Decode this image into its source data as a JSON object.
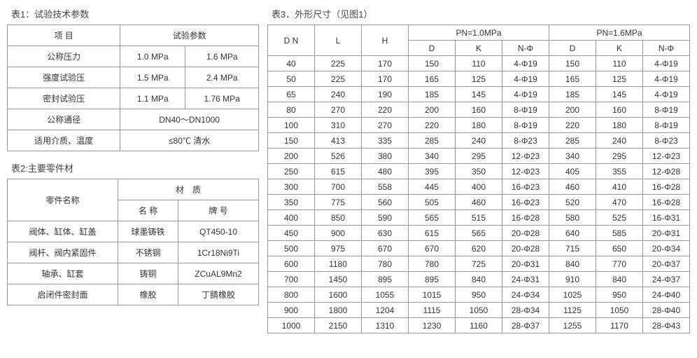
{
  "t1": {
    "title": "表1：试验技术参数",
    "colHeader": "项 目",
    "paramHeader": "试验参数",
    "rows": [
      {
        "label": "公称压力",
        "v1": "1.0 MPa",
        "v2": "1.6 MPa",
        "span": false
      },
      {
        "label": "强度试验压",
        "v1": "1.5 MPa",
        "v2": "2.4 MPa",
        "span": false
      },
      {
        "label": "密封试验压",
        "v1": "1.1 MPa",
        "v2": "1.76 MPa",
        "span": false
      },
      {
        "label": "公称通径",
        "v1": "DN40～DN1000",
        "span": true
      },
      {
        "label": "适用介质、温度",
        "v1": "≤80℃ 清水",
        "span": true
      }
    ]
  },
  "t2": {
    "title": "表2:主要零件材",
    "nameHeader": "零件名称",
    "matHeader": "材　质",
    "nameCol": "名 称",
    "gradeCol": "牌 号",
    "rows": [
      {
        "part": "阀体、缸体、缸盖",
        "mat": "球墨铸铁",
        "grade": "QT450-10"
      },
      {
        "part": "阀杆、阀内紧固件",
        "mat": "不锈钢",
        "grade": "1Cr18Ni9Ti"
      },
      {
        "part": "轴承、缸套",
        "mat": "铸铜",
        "grade": "ZCuAL9Mn2"
      },
      {
        "part": "启闭件密封面",
        "mat": "橡胶",
        "grade": "丁腈橡胶"
      }
    ]
  },
  "t3": {
    "title": "表3．外形尺寸（见图1）",
    "headers": {
      "dn": "D N",
      "l": "L",
      "h": "H",
      "pn10": "PN=1.0MPa",
      "pn16": "PN=1.6MPa",
      "d": "D",
      "k": "K",
      "nphi": "N-Φ"
    },
    "rows": [
      [
        "40",
        "225",
        "170",
        "150",
        "110",
        "4-Φ19",
        "150",
        "110",
        "4-Φ19"
      ],
      [
        "50",
        "225",
        "170",
        "165",
        "125",
        "4-Φ19",
        "165",
        "125",
        "4-Φ19"
      ],
      [
        "65",
        "240",
        "190",
        "185",
        "145",
        "4-Φ19",
        "185",
        "145",
        "4-Φ19"
      ],
      [
        "80",
        "270",
        "220",
        "200",
        "160",
        "8-Φ19",
        "200",
        "160",
        "8-Φ19"
      ],
      [
        "100",
        "310",
        "270",
        "220",
        "180",
        "8-Φ19",
        "220",
        "180",
        "8-Φ19"
      ],
      [
        "150",
        "413",
        "335",
        "285",
        "240",
        "8-Φ23",
        "285",
        "240",
        "8-Φ23"
      ],
      [
        "200",
        "526",
        "380",
        "340",
        "295",
        "12-Φ23",
        "340",
        "295",
        "12-Φ23"
      ],
      [
        "250",
        "615",
        "480",
        "395",
        "350",
        "12-Φ23",
        "405",
        "355",
        "12-Φ28"
      ],
      [
        "300",
        "700",
        "558",
        "445",
        "400",
        "16-Φ23",
        "460",
        "410",
        "16-Φ28"
      ],
      [
        "350",
        "775",
        "560",
        "505",
        "460",
        "16-Φ23",
        "520",
        "470",
        "16-Φ28"
      ],
      [
        "400",
        "850",
        "590",
        "565",
        "515",
        "16-Φ28",
        "580",
        "525",
        "16-Φ31"
      ],
      [
        "450",
        "900",
        "630",
        "615",
        "565",
        "20-Φ28",
        "640",
        "585",
        "20-Φ31"
      ],
      [
        "500",
        "975",
        "670",
        "670",
        "620",
        "20-Φ28",
        "715",
        "650",
        "20-Φ34"
      ],
      [
        "600",
        "1180",
        "780",
        "780",
        "725",
        "20-Φ31",
        "840",
        "770",
        "20-Φ37"
      ],
      [
        "700",
        "1450",
        "895",
        "895",
        "840",
        "24-Φ31",
        "910",
        "840",
        "24-Φ37"
      ],
      [
        "800",
        "1600",
        "1055",
        "1015",
        "950",
        "24-Φ34",
        "1025",
        "950",
        "24-Φ40"
      ],
      [
        "900",
        "1800",
        "1204",
        "1115",
        "1050",
        "28-Φ34",
        "1125",
        "1050",
        "28-Φ40"
      ],
      [
        "1000",
        "2150",
        "1310",
        "1230",
        "1160",
        "28-Φ37",
        "1255",
        "1170",
        "28-Φ43"
      ]
    ]
  }
}
